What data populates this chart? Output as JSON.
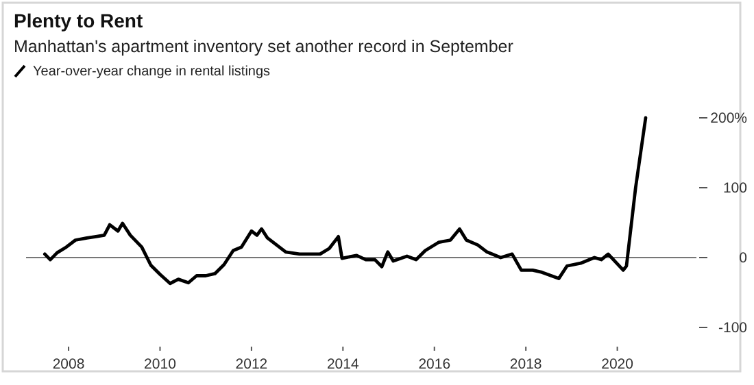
{
  "chart_data": {
    "type": "line",
    "title": "Plenty to Rent",
    "subtitle": "Manhattan's apartment inventory set another record in September",
    "x": [
      2007.48,
      2007.6,
      2007.75,
      2007.95,
      2008.15,
      2008.4,
      2008.5,
      2008.6,
      2008.78,
      2008.9,
      2009.08,
      2009.18,
      2009.35,
      2009.6,
      2009.8,
      2010.0,
      2010.22,
      2010.4,
      2010.62,
      2010.8,
      2011.0,
      2011.2,
      2011.4,
      2011.6,
      2011.78,
      2012.0,
      2012.12,
      2012.22,
      2012.35,
      2012.55,
      2012.75,
      2013.05,
      2013.5,
      2013.7,
      2013.9,
      2013.98,
      2014.3,
      2014.5,
      2014.7,
      2014.85,
      2014.98,
      2015.1,
      2015.4,
      2015.6,
      2015.8,
      2016.1,
      2016.35,
      2016.55,
      2016.7,
      2016.95,
      2017.15,
      2017.45,
      2017.7,
      2017.9,
      2018.15,
      2018.35,
      2018.72,
      2018.9,
      2019.2,
      2019.5,
      2019.65,
      2019.8,
      2020.13,
      2020.2,
      2020.4,
      2020.62
    ],
    "series": [
      {
        "name": "Year-over-year change in rental listings",
        "color": "#000000",
        "values": [
          5,
          -3,
          7,
          15,
          25,
          28,
          29,
          30,
          32,
          47,
          38,
          49,
          32,
          15,
          -11,
          -24,
          -37,
          -31,
          -36,
          -26,
          -26,
          -23,
          -10,
          10,
          15,
          38,
          32,
          41,
          28,
          18,
          8,
          5,
          5,
          13,
          30,
          -1,
          3,
          -3,
          -3,
          -13,
          8,
          -5,
          2,
          -3,
          10,
          22,
          25,
          41,
          25,
          18,
          8,
          0,
          5,
          -18,
          -18,
          -21,
          -30,
          -12,
          -8,
          0,
          -3,
          5,
          -18,
          -12,
          100,
          200
        ]
      }
    ],
    "xlim": [
      2007.07,
      2021.73
    ],
    "ylim": [
      -100,
      200
    ],
    "xticks": [
      2008,
      2010,
      2012,
      2014,
      2016,
      2018,
      2020
    ],
    "yticks": [
      {
        "value": 200,
        "label": "200%"
      },
      100,
      0,
      -100
    ],
    "ref_lines": [
      {
        "axis": "y",
        "value": 0,
        "color": "#777777"
      }
    ],
    "legend": "top left",
    "marker": "none",
    "line_style": "solid",
    "grid": false
  }
}
